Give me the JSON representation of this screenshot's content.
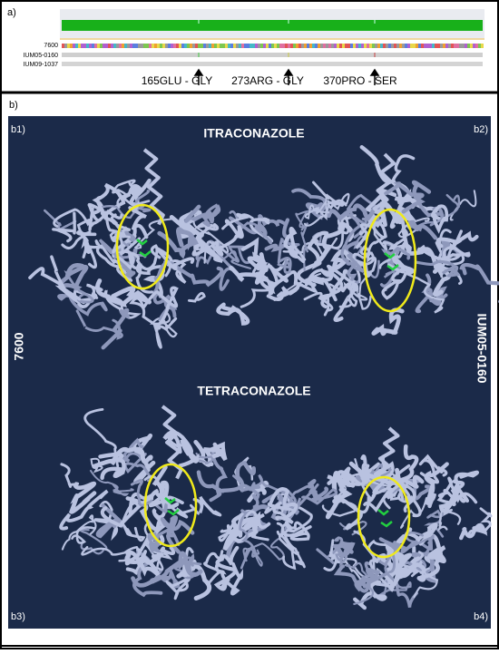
{
  "panel_a": {
    "label": "a)",
    "tracks": [
      "7600",
      "IUM05-0160",
      "IUM09-1037"
    ],
    "mutations": [
      "165GLU - GLY",
      "273ARG - GLY",
      "370PRO - SER"
    ]
  },
  "panel_b": {
    "label": "b)",
    "subpanels": [
      "b1)",
      "b2)",
      "b3)",
      "b4)"
    ],
    "drugs": [
      "ITRACONAZOLE",
      "TETRACONAZOLE"
    ],
    "strains": [
      "7600",
      "IUM05-0160"
    ]
  }
}
